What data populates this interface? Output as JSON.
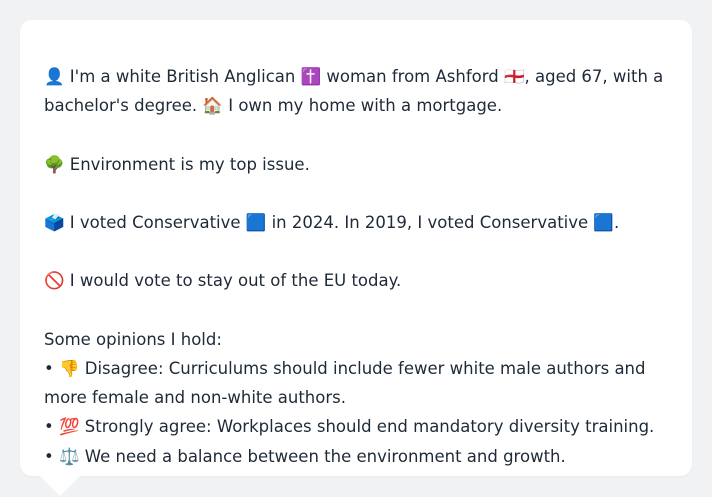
{
  "profile": {
    "intro_line1": "👤 I'm a white British Anglican ✝️ woman from Ashford 🏴󠁧󠁢󠁥󠁮󠁧󠁿, aged 67, with a",
    "intro_line2": "bachelor's degree. 🏠 I own my home with a mortgage.",
    "issue": "🌳 Environment is my top issue.",
    "vote": "🗳️ I voted Conservative 🟦 in 2024. In 2019, I voted Conservative 🟦.",
    "eu": "🚫 I would vote to stay out of the EU today.",
    "opinions_header": "Some opinions I hold:",
    "opinion1_line1": "• 👎 Disagree: Curriculums should include fewer white male authors and",
    "opinion1_line2": "more female and non-white authors.",
    "opinion2": "• 💯 Strongly agree: Workplaces should end mandatory diversity training.",
    "opinion3": "• ⚖️ We need a balance between the environment and growth."
  }
}
